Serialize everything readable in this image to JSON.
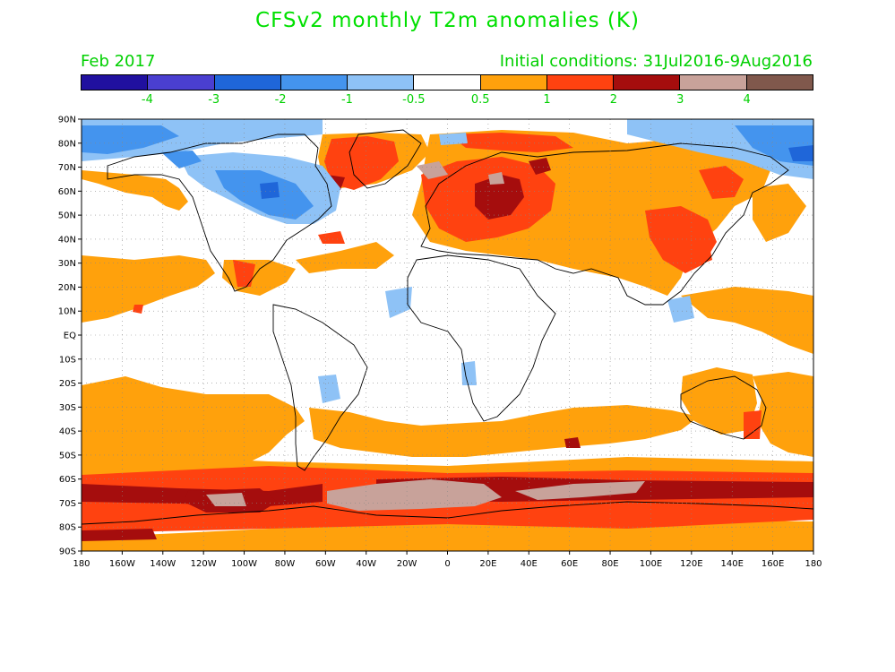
{
  "title": "CFSv2 monthly T2m anomalies (K)",
  "left_label": "Feb 2017",
  "right_label": "Initial conditions: 31Jul2016-9Aug2016",
  "colorbar": {
    "colors": [
      "#20109f",
      "#4a3fd0",
      "#1f66d9",
      "#4494ee",
      "#8ec2f6",
      "#ffffff",
      "#ffa10c",
      "#ff4210",
      "#a50d0d",
      "#c8a29a",
      "#80584c"
    ],
    "labels": [
      "-4",
      "-3",
      "-2",
      "-1",
      "-0.5",
      "0.5",
      "1",
      "2",
      "3",
      "4"
    ]
  },
  "map": {
    "lat_labels": [
      "90N",
      "80N",
      "70N",
      "60N",
      "50N",
      "40N",
      "30N",
      "20N",
      "10N",
      "EQ",
      "10S",
      "20S",
      "30S",
      "40S",
      "50S",
      "60S",
      "70S",
      "80S",
      "90S"
    ],
    "lon_labels": [
      "180",
      "160W",
      "140W",
      "120W",
      "100W",
      "80W",
      "60W",
      "40W",
      "20W",
      "0",
      "20E",
      "40E",
      "60E",
      "80E",
      "100E",
      "120E",
      "140E",
      "160E",
      "180"
    ]
  }
}
